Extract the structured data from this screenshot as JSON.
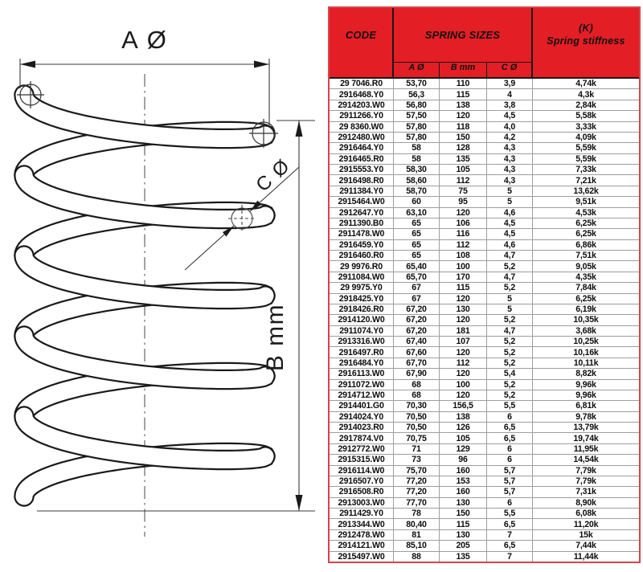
{
  "diagram": {
    "label_a": "A Ø",
    "label_b": "B mm",
    "label_c": "C Ø"
  },
  "table": {
    "colors": {
      "header_red": "#e31e25",
      "border_red": "#d4454b",
      "grid_gray": "#9e9e9e"
    },
    "header": {
      "code": "CODE",
      "sizes": "SPRING SIZES",
      "stiffness_line1": "(K)",
      "stiffness_line2": "Spring stiffness",
      "sub": [
        "A Ø",
        "B mm",
        "C Ø"
      ]
    },
    "rows": [
      [
        "29 7046.R0",
        "53,70",
        "110",
        "3,9",
        "4,74k"
      ],
      [
        "2916468.Y0",
        "56,3",
        "115",
        "4",
        "4,3k"
      ],
      [
        "2914203.W0",
        "56,80",
        "138",
        "3,8",
        "2,84k"
      ],
      [
        "2911266.Y0",
        "57,50",
        "120",
        "4,5",
        "5,58k"
      ],
      [
        "29 8360.W0",
        "57,80",
        "118",
        "4,0",
        "3,33k"
      ],
      [
        "2912480.W0",
        "57,80",
        "150",
        "4,2",
        "4,09k"
      ],
      [
        "2916464.Y0",
        "58",
        "128",
        "4,3",
        "5,59k"
      ],
      [
        "2916465.R0",
        "58",
        "135",
        "4,3",
        "5,59k"
      ],
      [
        "2915553.Y0",
        "58,30",
        "105",
        "4,3",
        "7,33k"
      ],
      [
        "2916498.R0",
        "58,60",
        "112",
        "4,3",
        "7,21k"
      ],
      [
        "2911384.Y0",
        "58,70",
        "75",
        "5",
        "13,62k"
      ],
      [
        "2915464.W0",
        "60",
        "95",
        "5",
        "9,51k"
      ],
      [
        "2912647.Y0",
        "63,10",
        "120",
        "4,6",
        "4,53k"
      ],
      [
        "2911390.B0",
        "65",
        "106",
        "4,5",
        "6,25k"
      ],
      [
        "2911478.W0",
        "65",
        "116",
        "4,5",
        "6,25k"
      ],
      [
        "2916459.Y0",
        "65",
        "112",
        "4,6",
        "6,86k"
      ],
      [
        "2916460.R0",
        "65",
        "108",
        "4,7",
        "7,51k"
      ],
      [
        "29 9976.R0",
        "65,40",
        "100",
        "5,2",
        "9,05k"
      ],
      [
        "2911084.W0",
        "65,70",
        "170",
        "4,7",
        "4,35k"
      ],
      [
        "29 9975.Y0",
        "67",
        "115",
        "5,2",
        "7,84k"
      ],
      [
        "2918425.Y0",
        "67",
        "120",
        "5",
        "6,25k"
      ],
      [
        "2918426.R0",
        "67,20",
        "130",
        "5",
        "6,19k"
      ],
      [
        "2914120.W0",
        "67,20",
        "120",
        "5,2",
        "10,35k"
      ],
      [
        "2911074.Y0",
        "67,20",
        "181",
        "4,7",
        "3,68k"
      ],
      [
        "2913316.W0",
        "67,40",
        "107",
        "5,2",
        "10,25k"
      ],
      [
        "2916497.R0",
        "67,60",
        "120",
        "5,2",
        "10,16k"
      ],
      [
        "2916484.Y0",
        "67,70",
        "112",
        "5,2",
        "10,11k"
      ],
      [
        "2916113.W0",
        "67,90",
        "120",
        "5,4",
        "8,82k"
      ],
      [
        "2911072.W0",
        "68",
        "100",
        "5,2",
        "9,96k"
      ],
      [
        "2914712.W0",
        "68",
        "120",
        "5,2",
        "9,96k"
      ],
      [
        "2914401.G0",
        "70,30",
        "156,5",
        "5,5",
        "6,81k"
      ],
      [
        "2914024.Y0",
        "70,50",
        "138",
        "6",
        "9,78k"
      ],
      [
        "2914023.R0",
        "70,50",
        "126",
        "6,5",
        "13,79k"
      ],
      [
        "2917874.V0",
        "70,75",
        "105",
        "6,5",
        "19,74k"
      ],
      [
        "2912772.W0",
        "71",
        "129",
        "6",
        "11,95k"
      ],
      [
        "2915315.W0",
        "73",
        "96",
        "6",
        "14,54k"
      ],
      [
        "2916114.W0",
        "75,70",
        "160",
        "5,7",
        "7,79k"
      ],
      [
        "2916507.Y0",
        "77,20",
        "153",
        "5,7",
        "7,79k"
      ],
      [
        "2916508.R0",
        "77,20",
        "160",
        "5,7",
        "7,31k"
      ],
      [
        "2913003.W0",
        "77,70",
        "130",
        "6",
        "8,90k"
      ],
      [
        "2911429.Y0",
        "78",
        "150",
        "5,5",
        "6,08k"
      ],
      [
        "2913344.W0",
        "80,40",
        "115",
        "6,5",
        "11,20k"
      ],
      [
        "2912478.W0",
        "81",
        "130",
        "7",
        "15k"
      ],
      [
        "2914121.W0",
        "85,10",
        "205",
        "6,5",
        "7,44k"
      ],
      [
        "2915497.W0",
        "88",
        "135",
        "7",
        "11,44k"
      ]
    ]
  }
}
